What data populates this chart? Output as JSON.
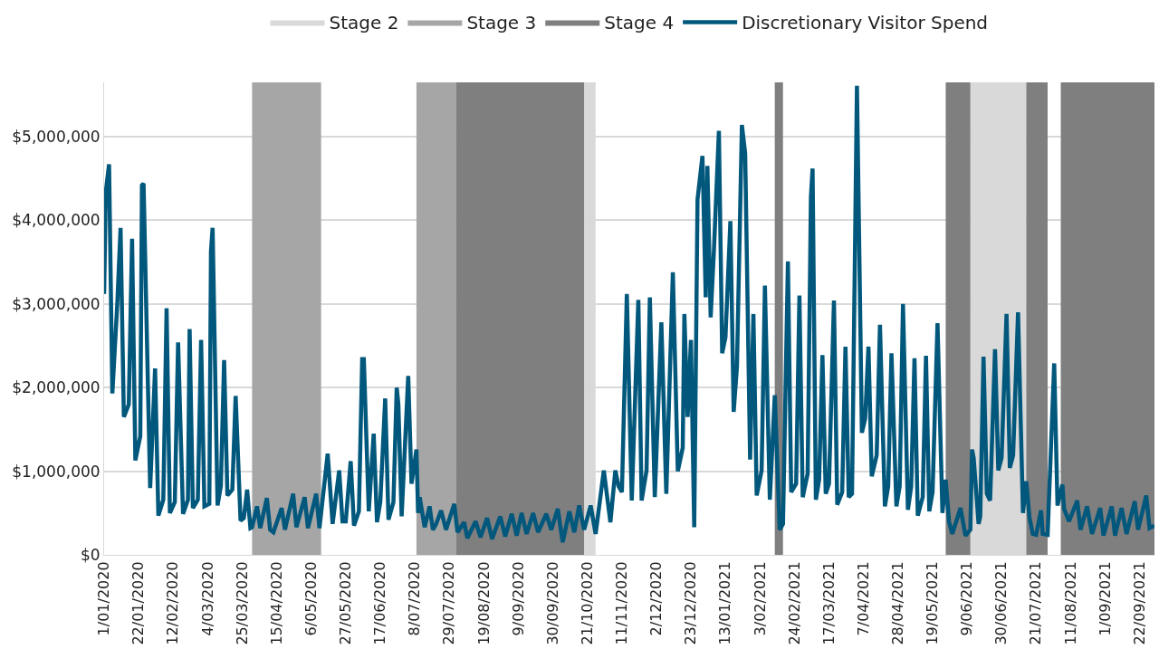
{
  "chart_data": {
    "type": "line",
    "x": [
      "2020-01-01",
      "2020-01-02",
      "2020-01-04",
      "2020-01-06",
      "2020-01-09",
      "2020-01-11",
      "2020-01-13",
      "2020-01-16",
      "2020-01-18",
      "2020-01-20",
      "2020-01-23",
      "2020-01-24",
      "2020-01-25",
      "2020-01-29",
      "2020-02-01",
      "2020-02-03",
      "2020-02-06",
      "2020-02-08",
      "2020-02-10",
      "2020-02-13",
      "2020-02-15",
      "2020-02-18",
      "2020-02-21",
      "2020-02-22",
      "2020-02-24",
      "2020-02-27",
      "2020-02-29",
      "2020-03-02",
      "2020-03-05",
      "2020-03-06",
      "2020-03-07",
      "2020-03-10",
      "2020-03-12",
      "2020-03-14",
      "2020-03-16",
      "2020-03-19",
      "2020-03-21",
      "2020-03-24",
      "2020-03-26",
      "2020-03-28",
      "2020-03-30",
      "2020-03-31",
      "2020-04-03",
      "2020-04-05",
      "2020-04-09",
      "2020-04-11",
      "2020-04-13",
      "2020-04-18",
      "2020-04-20",
      "2020-04-25",
      "2020-04-27",
      "2020-05-02",
      "2020-05-04",
      "2020-05-09",
      "2020-05-11",
      "2020-05-16",
      "2020-05-19",
      "2020-05-23",
      "2020-05-25",
      "2020-05-27",
      "2020-05-30",
      "2020-06-01",
      "2020-06-04",
      "2020-06-06",
      "2020-06-07",
      "2020-06-10",
      "2020-06-13",
      "2020-06-15",
      "2020-06-17",
      "2020-06-20",
      "2020-06-22",
      "2020-06-25",
      "2020-06-27",
      "2020-06-28",
      "2020-06-30",
      "2020-07-04",
      "2020-07-06",
      "2020-07-09",
      "2020-07-10",
      "2020-07-11",
      "2020-07-14",
      "2020-07-17",
      "2020-07-19",
      "2020-07-21",
      "2020-07-24",
      "2020-07-27",
      "2020-08-01",
      "2020-08-03",
      "2020-08-07",
      "2020-08-09",
      "2020-08-14",
      "2020-08-17",
      "2020-08-21",
      "2020-08-24",
      "2020-08-29",
      "2020-09-01",
      "2020-09-05",
      "2020-09-08",
      "2020-09-11",
      "2020-09-14",
      "2020-09-18",
      "2020-09-21",
      "2020-09-26",
      "2020-09-29",
      "2020-10-03",
      "2020-10-06",
      "2020-10-10",
      "2020-10-13",
      "2020-10-16",
      "2020-10-19",
      "2020-10-23",
      "2020-10-26",
      "2020-10-31",
      "2020-11-04",
      "2020-11-07",
      "2020-11-09",
      "2020-11-11",
      "2020-11-14",
      "2020-11-17",
      "2020-11-21",
      "2020-11-23",
      "2020-11-26",
      "2020-11-28",
      "2020-12-01",
      "2020-12-05",
      "2020-12-08",
      "2020-12-12",
      "2020-12-15",
      "2020-12-18",
      "2020-12-19",
      "2020-12-21",
      "2020-12-23",
      "2020-12-25",
      "2020-12-27",
      "2020-12-30",
      "2021-01-01",
      "2021-01-02",
      "2021-01-04",
      "2021-01-06",
      "2021-01-09",
      "2021-01-11",
      "2021-01-13",
      "2021-01-16",
      "2021-01-18",
      "2021-01-20",
      "2021-01-23",
      "2021-01-25",
      "2021-01-28",
      "2021-01-30",
      "2021-02-01",
      "2021-02-04",
      "2021-02-06",
      "2021-02-09",
      "2021-02-12",
      "2021-02-15",
      "2021-02-17",
      "2021-02-20",
      "2021-02-22",
      "2021-02-25",
      "2021-02-27",
      "2021-03-01",
      "2021-03-04",
      "2021-03-06",
      "2021-03-07",
      "2021-03-09",
      "2021-03-11",
      "2021-03-13",
      "2021-03-15",
      "2021-03-17",
      "2021-03-20",
      "2021-03-22",
      "2021-03-25",
      "2021-03-27",
      "2021-03-29",
      "2021-03-31",
      "2021-04-03",
      "2021-04-06",
      "2021-04-08",
      "2021-04-10",
      "2021-04-12",
      "2021-04-15",
      "2021-04-17",
      "2021-04-20",
      "2021-04-22",
      "2021-04-24",
      "2021-04-27",
      "2021-04-29",
      "2021-05-01",
      "2021-05-04",
      "2021-05-06",
      "2021-05-08",
      "2021-05-10",
      "2021-05-13",
      "2021-05-15",
      "2021-05-17",
      "2021-05-19",
      "2021-05-22",
      "2021-05-25",
      "2021-05-27",
      "2021-05-29",
      "2021-05-31",
      "2021-06-05",
      "2021-06-08",
      "2021-06-11",
      "2021-06-12",
      "2021-06-13",
      "2021-06-16",
      "2021-06-17",
      "2021-06-19",
      "2021-06-21",
      "2021-06-23",
      "2021-06-26",
      "2021-06-28",
      "2021-06-30",
      "2021-07-03",
      "2021-07-05",
      "2021-07-07",
      "2021-07-10",
      "2021-07-13",
      "2021-07-15",
      "2021-07-17",
      "2021-07-19",
      "2021-07-21",
      "2021-07-24",
      "2021-07-25",
      "2021-07-28",
      "2021-08-01",
      "2021-08-03",
      "2021-08-06",
      "2021-08-07",
      "2021-08-10",
      "2021-08-15",
      "2021-08-17",
      "2021-08-21",
      "2021-08-24",
      "2021-08-29",
      "2021-08-31",
      "2021-09-05",
      "2021-09-07",
      "2021-09-11",
      "2021-09-14",
      "2021-09-19",
      "2021-09-21",
      "2021-09-26",
      "2021-09-28",
      "2021-10-01"
    ],
    "series": [
      {
        "name": "Discretionary Visitor Spend",
        "color": "#02587c",
        "values": [
          3120000,
          4340000,
          4670000,
          1930000,
          3000000,
          3910000,
          1650000,
          1800000,
          3780000,
          1130000,
          1420000,
          4420000,
          4440000,
          800000,
          2230000,
          470000,
          660000,
          2950000,
          500000,
          630000,
          2540000,
          490000,
          660000,
          2700000,
          560000,
          660000,
          2570000,
          580000,
          610000,
          3630000,
          3910000,
          590000,
          820000,
          2330000,
          710000,
          780000,
          1900000,
          410000,
          440000,
          780000,
          320000,
          330000,
          580000,
          320000,
          680000,
          300000,
          270000,
          560000,
          300000,
          730000,
          330000,
          690000,
          320000,
          730000,
          320000,
          1210000,
          370000,
          1010000,
          400000,
          400000,
          1120000,
          350000,
          520000,
          2340000,
          2340000,
          520000,
          1450000,
          390000,
          630000,
          1870000,
          420000,
          630000,
          2000000,
          1800000,
          460000,
          2140000,
          850000,
          1260000,
          500000,
          690000,
          330000,
          580000,
          300000,
          370000,
          530000,
          300000,
          610000,
          270000,
          390000,
          200000,
          400000,
          210000,
          440000,
          190000,
          460000,
          220000,
          490000,
          230000,
          500000,
          250000,
          500000,
          270000,
          490000,
          300000,
          550000,
          150000,
          520000,
          270000,
          590000,
          300000,
          590000,
          250000,
          1010000,
          390000,
          1010000,
          820000,
          750000,
          3120000,
          650000,
          3050000,
          650000,
          1010000,
          3080000,
          690000,
          2780000,
          730000,
          3380000,
          1000000,
          1280000,
          2880000,
          1650000,
          2570000,
          330000,
          4250000,
          4770000,
          3080000,
          4650000,
          2840000,
          3650000,
          5070000,
          2410000,
          2600000,
          3990000,
          1710000,
          2250000,
          5140000,
          4800000,
          1140000,
          2880000,
          710000,
          1010000,
          3220000,
          660000,
          1910000,
          300000,
          370000,
          3510000,
          750000,
          850000,
          3100000,
          690000,
          970000,
          4280000,
          4620000,
          660000,
          900000,
          2390000,
          730000,
          850000,
          3040000,
          600000,
          750000,
          2490000,
          690000,
          730000,
          5610000,
          1460000,
          1630000,
          2490000,
          940000,
          1190000,
          2750000,
          580000,
          820000,
          2410000,
          580000,
          820000,
          3000000,
          540000,
          820000,
          2350000,
          470000,
          690000,
          2380000,
          520000,
          750000,
          2770000,
          500000,
          900000,
          400000,
          250000,
          560000,
          230000,
          300000,
          1260000,
          1160000,
          370000,
          460000,
          2370000,
          730000,
          650000,
          2460000,
          1010000,
          1160000,
          2880000,
          1040000,
          1190000,
          2900000,
          500000,
          880000,
          440000,
          250000,
          240000,
          530000,
          250000,
          240000,
          2290000,
          590000,
          840000,
          550000,
          400000,
          650000,
          300000,
          580000,
          250000,
          560000,
          230000,
          580000,
          230000,
          560000,
          250000,
          640000,
          300000,
          710000,
          320000,
          350000
        ]
      }
    ],
    "bands": [
      {
        "axis": "x",
        "from": "2020-10-19",
        "to": "2020-10-26",
        "label": "Stage 2",
        "color": "#d9d9d9"
      },
      {
        "axis": "x",
        "from": "2021-06-11",
        "to": "2021-07-15",
        "color": "#d9d9d9"
      },
      {
        "axis": "x",
        "from": "2020-03-31",
        "to": "2020-05-12",
        "label": "Stage 3",
        "color": "#a6a6a6"
      },
      {
        "axis": "x",
        "from": "2020-07-09",
        "to": "2020-08-02",
        "color": "#a6a6a6"
      },
      {
        "axis": "x",
        "from": "2020-08-02",
        "to": "2020-10-19",
        "label": "Stage 4",
        "color": "#7f7f7f"
      },
      {
        "axis": "x",
        "from": "2021-02-12",
        "to": "2021-02-17",
        "color": "#7f7f7f"
      },
      {
        "axis": "x",
        "from": "2021-05-27",
        "to": "2021-06-11",
        "color": "#7f7f7f"
      },
      {
        "axis": "x",
        "from": "2021-07-15",
        "to": "2021-07-28",
        "color": "#7f7f7f"
      },
      {
        "axis": "x",
        "from": "2021-08-05",
        "to": "2021-10-01",
        "color": "#7f7f7f"
      }
    ],
    "xlim": [
      "2020-01-01",
      "2021-10-01"
    ],
    "xticks": [
      {
        "value": "2020-01-01",
        "label": "1/01/2020"
      },
      {
        "value": "2020-01-22",
        "label": "22/01/2020"
      },
      {
        "value": "2020-02-12",
        "label": "12/02/2020"
      },
      {
        "value": "2020-03-04",
        "label": "4/03/2020"
      },
      {
        "value": "2020-03-25",
        "label": "25/03/2020"
      },
      {
        "value": "2020-04-15",
        "label": "15/04/2020"
      },
      {
        "value": "2020-05-06",
        "label": "6/05/2020"
      },
      {
        "value": "2020-05-27",
        "label": "27/05/2020"
      },
      {
        "value": "2020-06-17",
        "label": "17/06/2020"
      },
      {
        "value": "2020-07-08",
        "label": "8/07/2020"
      },
      {
        "value": "2020-07-29",
        "label": "29/07/2020"
      },
      {
        "value": "2020-08-19",
        "label": "19/08/2020"
      },
      {
        "value": "2020-09-09",
        "label": "9/09/2020"
      },
      {
        "value": "2020-09-30",
        "label": "30/09/2020"
      },
      {
        "value": "2020-10-21",
        "label": "21/10/2020"
      },
      {
        "value": "2020-11-11",
        "label": "11/11/2020"
      },
      {
        "value": "2020-12-02",
        "label": "2/12/2020"
      },
      {
        "value": "2020-12-23",
        "label": "23/12/2020"
      },
      {
        "value": "2021-01-13",
        "label": "13/01/2021"
      },
      {
        "value": "2021-02-03",
        "label": "3/02/2021"
      },
      {
        "value": "2021-02-24",
        "label": "24/02/2021"
      },
      {
        "value": "2021-03-17",
        "label": "17/03/2021"
      },
      {
        "value": "2021-04-07",
        "label": "7/04/2021"
      },
      {
        "value": "2021-04-28",
        "label": "28/04/2021"
      },
      {
        "value": "2021-05-19",
        "label": "19/05/2021"
      },
      {
        "value": "2021-06-09",
        "label": "9/06/2021"
      },
      {
        "value": "2021-06-30",
        "label": "30/06/2021"
      },
      {
        "value": "2021-07-21",
        "label": "21/07/2021"
      },
      {
        "value": "2021-08-11",
        "label": "11/08/2021"
      },
      {
        "value": "2021-09-01",
        "label": "1/09/2021"
      },
      {
        "value": "2021-09-22",
        "label": "22/09/2021"
      }
    ],
    "ylim": [
      0,
      5650000
    ],
    "yticks": [
      {
        "value": 0,
        "label": "$0"
      },
      {
        "value": 1000000,
        "label": "$1,000,000"
      },
      {
        "value": 2000000,
        "label": "$2,000,000"
      },
      {
        "value": 3000000,
        "label": "$3,000,000"
      },
      {
        "value": 4000000,
        "label": "$4,000,000"
      },
      {
        "value": 5000000,
        "label": "$5,000,000"
      }
    ],
    "grid": "y",
    "legend": "top",
    "marker": "none",
    "line_style": "solid"
  }
}
